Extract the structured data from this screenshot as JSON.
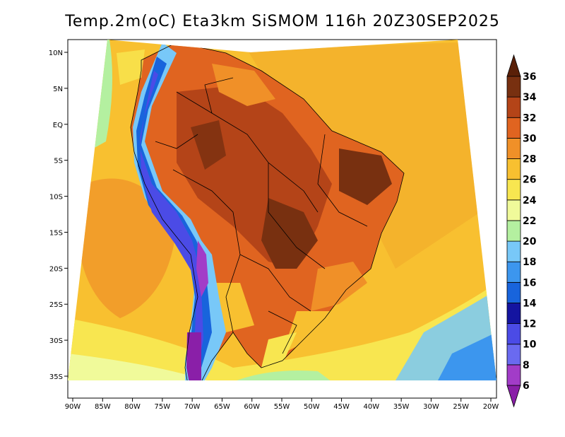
{
  "title": "Temp.2m(oC) Eta3km SiSMOM 116h 20Z30SEP2025",
  "map": {
    "lon_labels": [
      "90W",
      "85W",
      "80W",
      "75W",
      "70W",
      "65W",
      "60W",
      "55W",
      "50W",
      "45W",
      "40W",
      "35W",
      "30W",
      "25W",
      "20W"
    ],
    "lat_labels": [
      "10N",
      "5N",
      "EQ",
      "5S",
      "10S",
      "15S",
      "20S",
      "25S",
      "30S",
      "35S"
    ]
  },
  "colorbar": {
    "levels": [
      6,
      8,
      10,
      12,
      14,
      16,
      18,
      20,
      22,
      24,
      26,
      28,
      30,
      32,
      34,
      36
    ],
    "labels": [
      "6",
      "8",
      "10",
      "12",
      "14",
      "16",
      "18",
      "20",
      "22",
      "24",
      "26",
      "28",
      "30",
      "32",
      "34",
      "36"
    ],
    "colors": [
      "#8a1fa8",
      "#a23cc8",
      "#6a6af0",
      "#4b4be6",
      "#1414a0",
      "#1864dc",
      "#3c96ee",
      "#78c8f8",
      "#b4f0a0",
      "#f0fa9a",
      "#f8e650",
      "#f8c030",
      "#f09028",
      "#e06420",
      "#b44418",
      "#783010",
      "#5a2008"
    ]
  }
}
